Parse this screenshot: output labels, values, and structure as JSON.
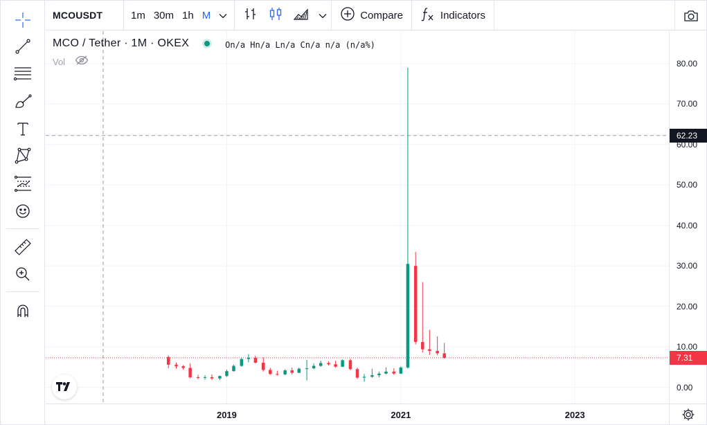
{
  "toolbar": {
    "symbol": "MCOUSDT",
    "intervals": [
      {
        "label": "1m",
        "active": false
      },
      {
        "label": "30m",
        "active": false
      },
      {
        "label": "1h",
        "active": false
      },
      {
        "label": "M",
        "active": true
      }
    ],
    "compare_label": "Compare",
    "indicators_label": "Indicators",
    "icons": [
      "chevron-down-icon",
      "bar-chart-icon",
      "candles-icon",
      "area-chart-icon",
      "plus-circle-icon",
      "fx-icon",
      "camera-icon"
    ]
  },
  "left_tools": [
    "crosshair-icon",
    "trend-line-icon",
    "horizontal-lines-icon",
    "brush-icon",
    "text-icon",
    "pattern-icon",
    "forecast-icon",
    "emoji-icon",
    "ruler-icon",
    "zoom-in-icon",
    "magnet-icon"
  ],
  "legend": {
    "title": "MCO / Tether · 1M · OKEX",
    "status_color": "#089981",
    "ohlc": "On/a Hn/a Ln/a Cn/a n/a (n/a%)",
    "vol_label": "Vol"
  },
  "price_scale": {
    "ticks": [
      "80.00",
      "70.00",
      "60.00",
      "50.00",
      "40.00",
      "30.00",
      "20.00",
      "10.00",
      "0.00"
    ],
    "crosshair_price": "62.23",
    "last_price": "7.31",
    "last_price_color": "#f23645"
  },
  "time_scale": {
    "ticks": [
      "2019",
      "2021",
      "2023"
    ]
  },
  "colors": {
    "up": "#089981",
    "down": "#f23645",
    "grid": "#f0f3fa"
  },
  "chart_data": {
    "type": "candlestick",
    "symbol": "MCOUSDT",
    "exchange": "OKEX",
    "interval": "1M",
    "ylim": [
      -4,
      88
    ],
    "xlim": [
      2016.92,
      2024.08
    ],
    "y_ticks": [
      0,
      10,
      20,
      30,
      40,
      50,
      60,
      70,
      80
    ],
    "x_ticks": [
      2019,
      2021,
      2023
    ],
    "crosshair": {
      "x": 2017.58,
      "y": 62.23
    },
    "last_price": 7.31,
    "candles": [
      {
        "t": 2018.33,
        "o": 7.5,
        "h": 7.9,
        "l": 4.7,
        "c": 5.6
      },
      {
        "t": 2018.42,
        "o": 5.6,
        "h": 6.1,
        "l": 4.6,
        "c": 5.2
      },
      {
        "t": 2018.5,
        "o": 5.2,
        "h": 5.5,
        "l": 4.4,
        "c": 4.8
      },
      {
        "t": 2018.58,
        "o": 4.8,
        "h": 5.9,
        "l": 2.2,
        "c": 2.5
      },
      {
        "t": 2018.67,
        "o": 2.5,
        "h": 3.1,
        "l": 2.0,
        "c": 2.4
      },
      {
        "t": 2018.75,
        "o": 2.4,
        "h": 3.0,
        "l": 1.9,
        "c": 2.5
      },
      {
        "t": 2018.83,
        "o": 2.5,
        "h": 3.2,
        "l": 1.8,
        "c": 2.2
      },
      {
        "t": 2018.92,
        "o": 2.2,
        "h": 2.9,
        "l": 1.8,
        "c": 2.8
      },
      {
        "t": 2019.0,
        "o": 2.8,
        "h": 4.4,
        "l": 2.6,
        "c": 4.0
      },
      {
        "t": 2019.08,
        "o": 4.0,
        "h": 5.6,
        "l": 3.9,
        "c": 5.3
      },
      {
        "t": 2019.17,
        "o": 5.3,
        "h": 7.4,
        "l": 5.1,
        "c": 7.0
      },
      {
        "t": 2019.25,
        "o": 7.0,
        "h": 8.2,
        "l": 6.2,
        "c": 7.3
      },
      {
        "t": 2019.33,
        "o": 7.3,
        "h": 7.8,
        "l": 5.9,
        "c": 6.1
      },
      {
        "t": 2019.42,
        "o": 6.1,
        "h": 7.4,
        "l": 3.9,
        "c": 4.3
      },
      {
        "t": 2019.5,
        "o": 4.3,
        "h": 4.8,
        "l": 3.1,
        "c": 3.3
      },
      {
        "t": 2019.58,
        "o": 3.3,
        "h": 4.1,
        "l": 2.9,
        "c": 3.2
      },
      {
        "t": 2019.67,
        "o": 3.2,
        "h": 4.5,
        "l": 3.0,
        "c": 4.2
      },
      {
        "t": 2019.75,
        "o": 4.2,
        "h": 4.9,
        "l": 3.2,
        "c": 3.6
      },
      {
        "t": 2019.83,
        "o": 3.6,
        "h": 4.9,
        "l": 3.5,
        "c": 4.6
      },
      {
        "t": 2019.92,
        "o": 4.6,
        "h": 6.8,
        "l": 1.7,
        "c": 4.7
      },
      {
        "t": 2020.0,
        "o": 4.7,
        "h": 5.9,
        "l": 4.5,
        "c": 5.3
      },
      {
        "t": 2020.08,
        "o": 5.3,
        "h": 6.6,
        "l": 5.1,
        "c": 6.0
      },
      {
        "t": 2020.17,
        "o": 6.0,
        "h": 6.4,
        "l": 5.4,
        "c": 5.7
      },
      {
        "t": 2020.25,
        "o": 5.7,
        "h": 6.6,
        "l": 4.9,
        "c": 5.1
      },
      {
        "t": 2020.33,
        "o": 5.1,
        "h": 6.9,
        "l": 5.0,
        "c": 6.7
      },
      {
        "t": 2020.42,
        "o": 6.7,
        "h": 7.1,
        "l": 4.2,
        "c": 4.5
      },
      {
        "t": 2020.5,
        "o": 4.5,
        "h": 4.9,
        "l": 2.1,
        "c": 2.4
      },
      {
        "t": 2020.58,
        "o": 2.4,
        "h": 3.3,
        "l": 1.4,
        "c": 2.6
      },
      {
        "t": 2020.67,
        "o": 2.6,
        "h": 4.6,
        "l": 2.4,
        "c": 3.0
      },
      {
        "t": 2020.75,
        "o": 3.0,
        "h": 3.9,
        "l": 2.5,
        "c": 3.4
      },
      {
        "t": 2020.83,
        "o": 3.4,
        "h": 4.9,
        "l": 3.2,
        "c": 3.9
      },
      {
        "t": 2020.92,
        "o": 3.9,
        "h": 4.7,
        "l": 3.1,
        "c": 3.4
      },
      {
        "t": 2021.0,
        "o": 3.4,
        "h": 5.2,
        "l": 3.3,
        "c": 4.9
      },
      {
        "t": 2021.08,
        "o": 4.9,
        "h": 79.0,
        "l": 4.6,
        "c": 30.5
      },
      {
        "t": 2021.17,
        "o": 30.0,
        "h": 33.5,
        "l": 10.6,
        "c": 11.2
      },
      {
        "t": 2021.25,
        "o": 11.2,
        "h": 26.0,
        "l": 8.6,
        "c": 9.4
      },
      {
        "t": 2021.33,
        "o": 9.4,
        "h": 14.2,
        "l": 8.0,
        "c": 9.0
      },
      {
        "t": 2021.42,
        "o": 9.0,
        "h": 12.6,
        "l": 7.9,
        "c": 8.4
      },
      {
        "t": 2021.5,
        "o": 8.4,
        "h": 11.0,
        "l": 7.1,
        "c": 7.31
      }
    ]
  }
}
